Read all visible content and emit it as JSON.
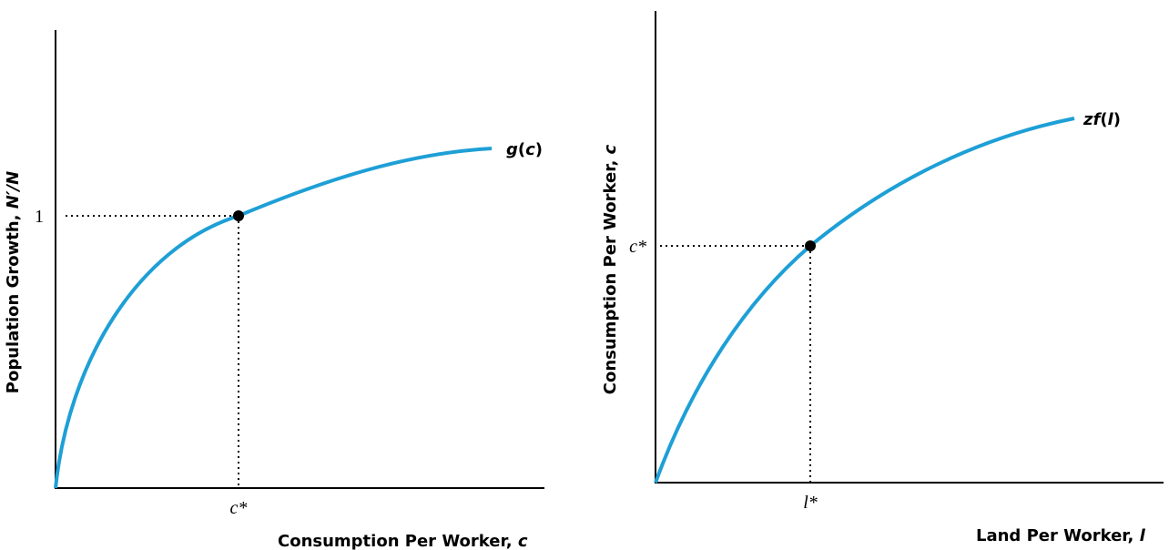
{
  "left": {
    "y_label": {
      "text": "Population Growth, ",
      "var": "N′/N"
    },
    "y_tick": "1",
    "x_tick": "c*",
    "x_label": {
      "text": "Consumption Per Worker, ",
      "var": "c"
    },
    "curve_label": {
      "name": "g",
      "open": "(",
      "var": "c",
      "close": ")"
    }
  },
  "right": {
    "y_label": {
      "text": "Consumption Per Worker, ",
      "var": "c"
    },
    "y_tick": "c*",
    "x_tick": "l*",
    "x_label": {
      "text": "Land Per Worker, ",
      "var": "l"
    },
    "curve_label": {
      "name": "zf",
      "open": "(",
      "var": "l",
      "close": ")"
    }
  }
}
